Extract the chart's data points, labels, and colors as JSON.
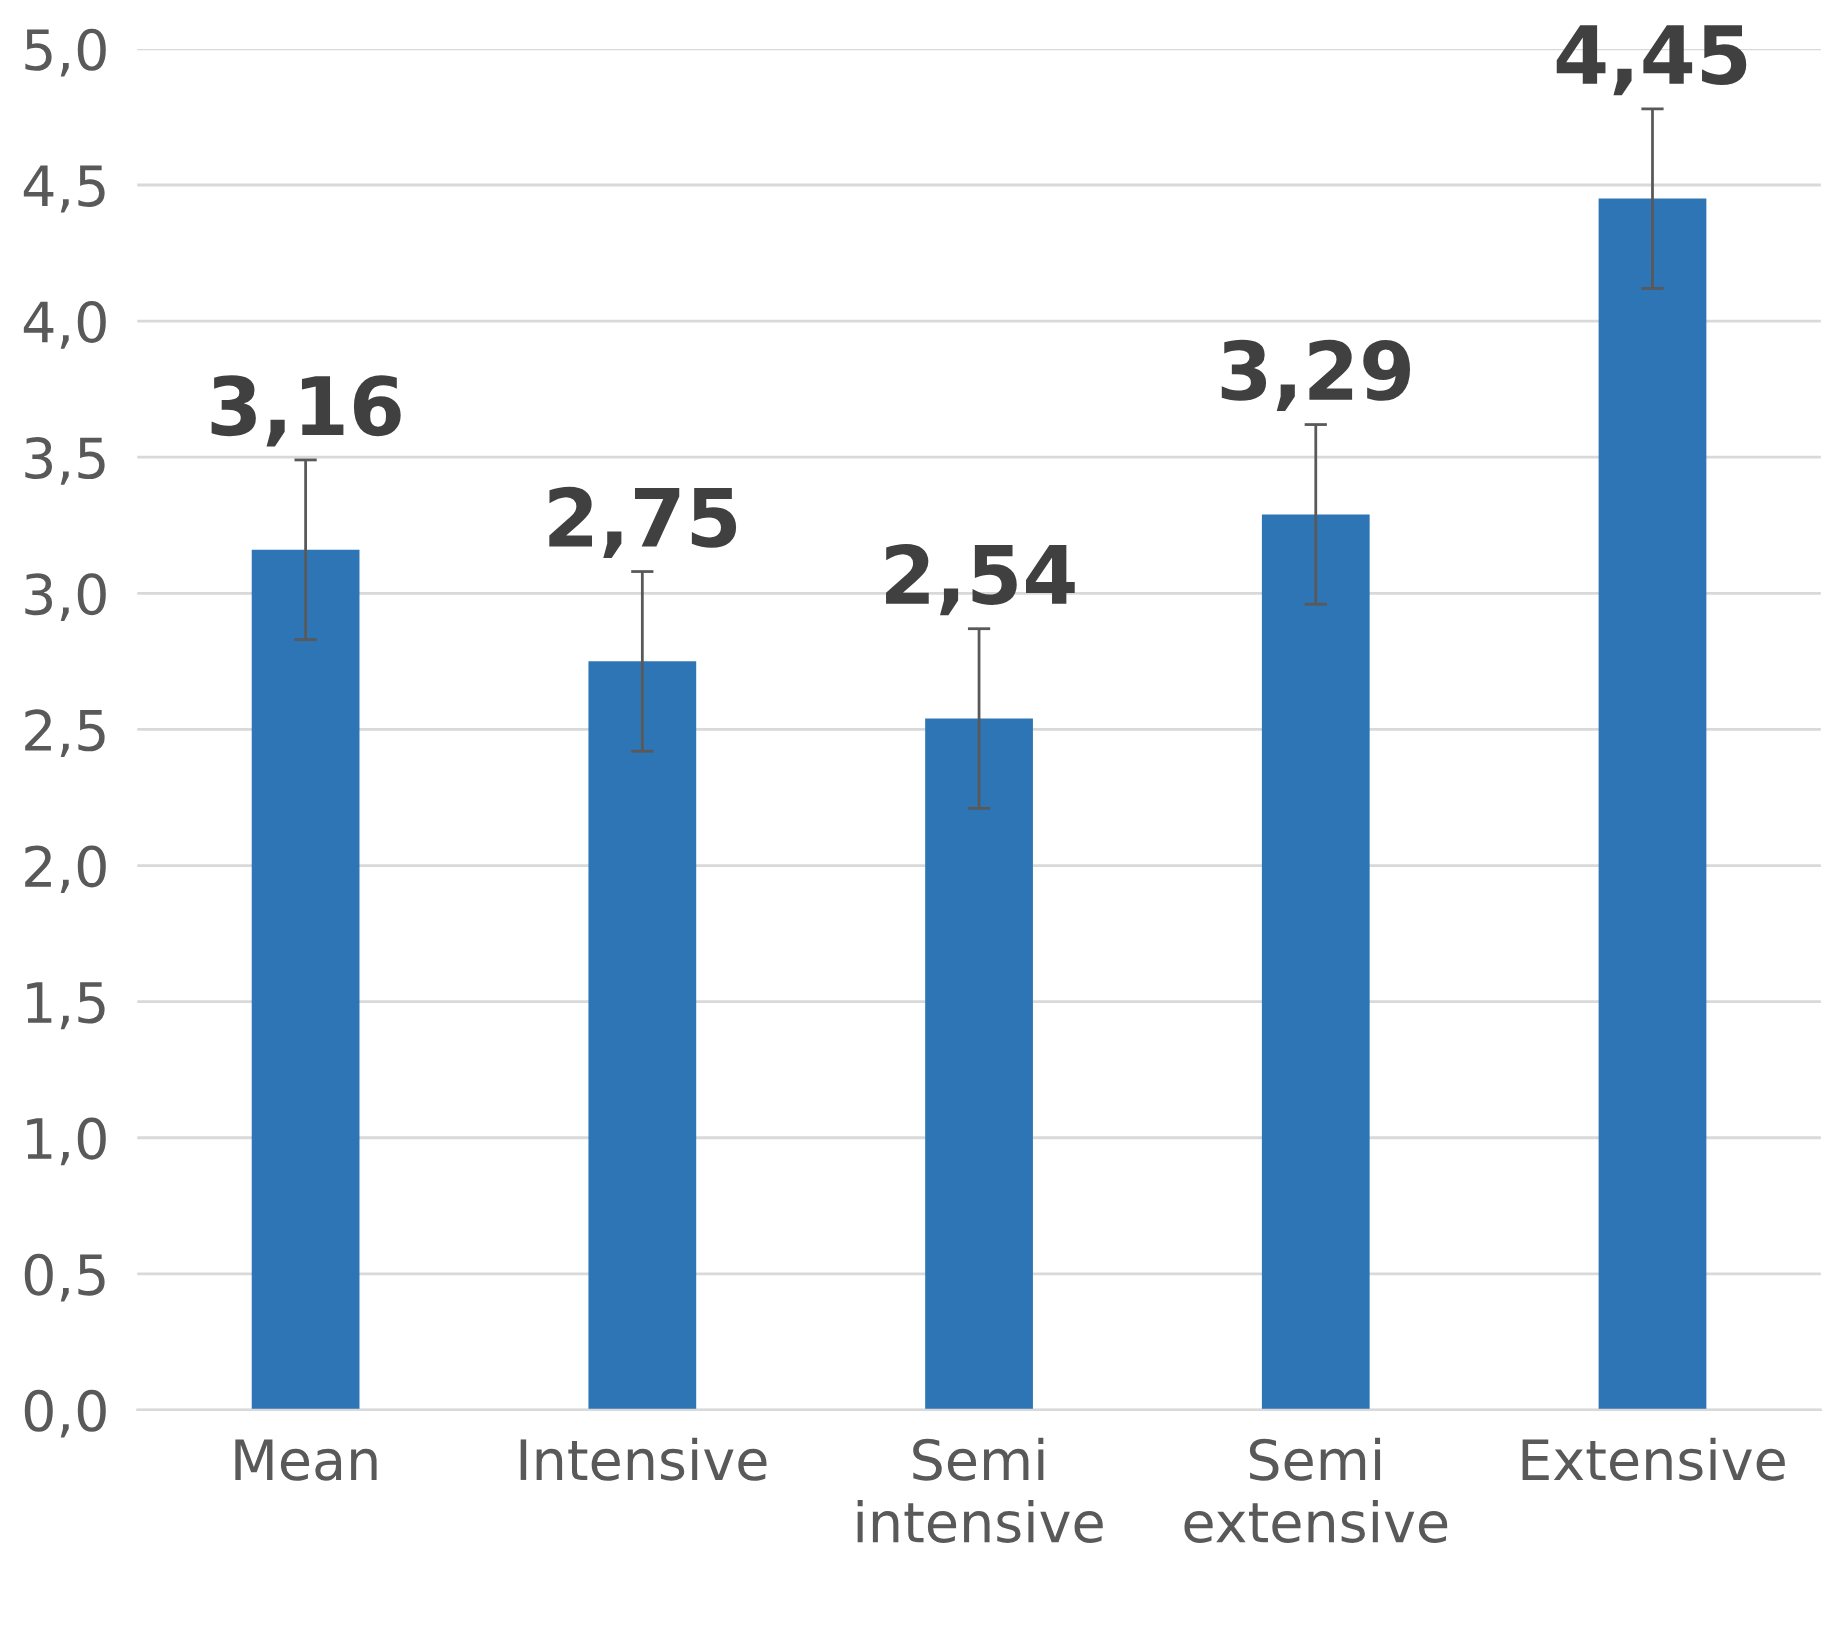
{
  "chart_data": {
    "type": "bar",
    "categories": [
      "Mean",
      "Intensive",
      "Semi\nintensive",
      "Semi\nextensive",
      "Extensive"
    ],
    "values": [
      3.16,
      2.75,
      2.54,
      3.29,
      4.45
    ],
    "errors": [
      0.33,
      0.33,
      0.33,
      0.33,
      0.33
    ],
    "value_labels": [
      "3,16",
      "2,75",
      "2,54",
      "3,29",
      "4,45"
    ],
    "color": "#2e75b6",
    "ylim": [
      0,
      5
    ],
    "yticks": [
      {
        "value": 0,
        "label": "0,0"
      },
      {
        "value": 0.5,
        "label": "0,5"
      },
      {
        "value": 1,
        "label": "1,0"
      },
      {
        "value": 1.5,
        "label": "1,5"
      },
      {
        "value": 2,
        "label": "2,0"
      },
      {
        "value": 2.5,
        "label": "2,5"
      },
      {
        "value": 3,
        "label": "3,0"
      },
      {
        "value": 3.5,
        "label": "3,5"
      },
      {
        "value": 4,
        "label": "4,0"
      },
      {
        "value": 4.5,
        "label": "4,5"
      },
      {
        "value": 5,
        "label": "5,0"
      }
    ],
    "grid": "y",
    "legend": false
  }
}
